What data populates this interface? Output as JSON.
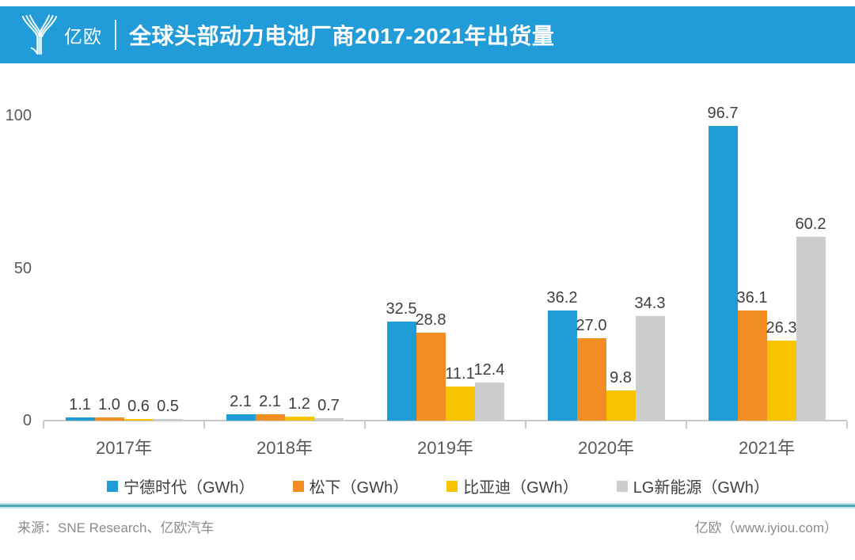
{
  "header": {
    "logo_text": "亿欧",
    "title": "全球头部动力电池厂商2017-2021年出货量",
    "brand_color": "#219CD8"
  },
  "chart_data": {
    "type": "bar",
    "title": "全球头部动力电池厂商2017-2021年出货量",
    "categories": [
      "2017年",
      "2018年",
      "2019年",
      "2020年",
      "2021年"
    ],
    "series": [
      {
        "name": "宁德时代（GWh）",
        "color": "#1E9CD6",
        "values": [
          1.1,
          2.1,
          32.5,
          36.2,
          96.7
        ]
      },
      {
        "name": "松下（GWh）",
        "color": "#F28D24",
        "values": [
          1.0,
          2.1,
          28.8,
          27.0,
          36.1
        ]
      },
      {
        "name": "比亚迪（GWh）",
        "color": "#F7C500",
        "values": [
          0.6,
          1.2,
          11.1,
          9.8,
          26.3
        ]
      },
      {
        "name": "LG新能源（GWh）",
        "color": "#CDCDCD",
        "values": [
          0.5,
          0.7,
          12.4,
          34.3,
          60.2
        ]
      }
    ],
    "ylabel": "",
    "xlabel": "",
    "y_ticks": [
      0,
      50,
      100
    ],
    "ylim": [
      0,
      105
    ],
    "grid": false,
    "legend_position": "bottom",
    "value_labels": true,
    "axis_color": "#C9C9C9",
    "label_color": "#404040",
    "tick_label_color": "#595959"
  },
  "footer": {
    "source": "来源：SNE Research、亿欧汽车",
    "credit": "亿欧（www.iyiou.com）",
    "divider_color": "#4FA9B5"
  }
}
